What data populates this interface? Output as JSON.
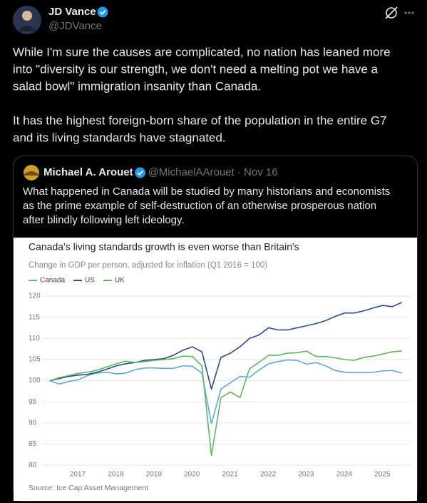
{
  "tweet": {
    "author": "JD Vance",
    "handle": "@JDVance",
    "paragraphs": [
      [
        "While I'm sure the causes are complicated, no nation has leaned more",
        "into \"diversity is our strength, we don't need a melting pot we have a",
        "salad bowl\" immigration insanity than Canada."
      ],
      [
        "It has the highest foreign-born share of the population in the entire G7",
        "and its living standards have stagnated."
      ]
    ]
  },
  "quote": {
    "author": "Michael A. Arouet",
    "meta": "@MichaelAArouet · Nov 16",
    "lines": [
      "What happened in Canada will be studied by many historians and economists",
      "as the prime example of self-destruction of an otherwise prosperous nation",
      "after blindly following left ideology."
    ]
  },
  "chart_data": {
    "type": "line",
    "title": "Canada's living standards growth is even worse than Britain's",
    "subtitle": "Change in GDP per person, adjusted for inflation (Q1 2016 = 100)",
    "source": "Source: Ice Cap Asset Management",
    "x": [
      2016,
      2016.25,
      2016.5,
      2016.75,
      2017,
      2017.25,
      2017.5,
      2017.75,
      2018,
      2018.25,
      2018.5,
      2018.75,
      2019,
      2019.25,
      2019.5,
      2019.75,
      2020,
      2020.25,
      2020.5,
      2020.75,
      2021,
      2021.25,
      2021.5,
      2021.75,
      2022,
      2022.25,
      2022.5,
      2022.75,
      2023,
      2023.25,
      2023.5,
      2023.75,
      2024,
      2024.25,
      2024.5,
      2024.75,
      2025,
      2025.25
    ],
    "xlim": [
      2015.82,
      2025.5
    ],
    "xticks": [
      2017,
      2018,
      2019,
      2020,
      2021,
      2022,
      2023,
      2024,
      2025
    ],
    "ylim": [
      80,
      120
    ],
    "yticks": [
      80,
      85,
      90,
      95,
      100,
      105,
      110,
      115,
      120
    ],
    "grid": true,
    "series": [
      {
        "name": "Canada",
        "color": "#5aa9e6",
        "values": [
          100,
          99.2,
          99.8,
          100.2,
          101.2,
          101.8,
          102,
          101.6,
          101.8,
          102.6,
          103,
          103,
          102.9,
          102.9,
          103.5,
          103.4,
          101.8,
          89.8,
          98,
          99.5,
          101,
          100.8,
          102.5,
          104,
          104.5,
          104.9,
          104.8,
          103.9,
          104.3,
          103.5,
          102.4,
          102,
          101.9,
          101.9,
          102,
          102.3,
          102.4,
          101.8
        ]
      },
      {
        "name": "US",
        "color": "#2b4c8c",
        "values": [
          100,
          100.5,
          101,
          101.3,
          101.5,
          102,
          102.7,
          103.5,
          104,
          104.3,
          104.8,
          105,
          105.2,
          106,
          107.2,
          108,
          106.8,
          98,
          105.5,
          106.5,
          108,
          110,
          110.8,
          112.5,
          112,
          112,
          112.5,
          113,
          113.5,
          114.2,
          115.2,
          116,
          116,
          116.5,
          117.2,
          117.8,
          117.5,
          118.5
        ]
      },
      {
        "name": "UK",
        "color": "#5cb85c",
        "values": [
          100,
          100.7,
          101.2,
          101.7,
          102,
          102.5,
          103.2,
          104,
          104.6,
          104.3,
          104.5,
          104.8,
          105,
          105.2,
          105.8,
          105.7,
          103.5,
          82.3,
          96,
          97.3,
          96,
          102.8,
          104.3,
          106,
          106,
          106.5,
          106.6,
          107,
          105.7,
          105.7,
          105.4,
          105,
          104.8,
          105.5,
          105.8,
          106.3,
          106.8,
          107
        ]
      }
    ]
  }
}
